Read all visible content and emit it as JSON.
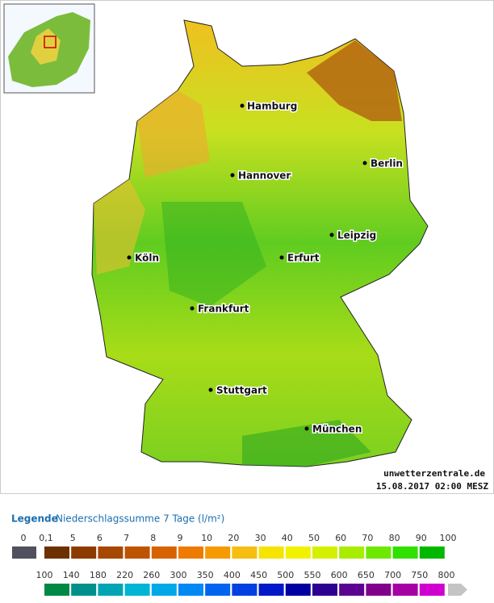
{
  "map": {
    "cities": [
      "Hamburg",
      "Hannover",
      "Berlin",
      "Leipzig",
      "Köln",
      "Erfurt",
      "Frankfurt",
      "Stuttgart",
      "München"
    ],
    "source": "unwetterzentrale.de",
    "timestamp": "15.08.2017 02:00 MESZ"
  },
  "legend": {
    "title": "Legende",
    "subtitle": "Niederschlagssumme 7 Tage  (l/m²)",
    "row1_labels": [
      "0",
      "0,1",
      "5",
      "6",
      "7",
      "8",
      "9",
      "10",
      "20",
      "30",
      "40",
      "50",
      "60",
      "70",
      "80",
      "90",
      "100"
    ],
    "row1_colors": [
      "#50505e",
      "#6e3000",
      "#8c3c00",
      "#a64800",
      "#bd5400",
      "#d86200",
      "#ef7a00",
      "#f59a00",
      "#f5be10",
      "#f5e400",
      "#f2f200",
      "#d4f000",
      "#a8ec00",
      "#6ee800",
      "#30e000",
      "#00b800",
      "#0c8c10"
    ],
    "row2_labels": [
      "100",
      "140",
      "180",
      "220",
      "260",
      "300",
      "350",
      "400",
      "450",
      "500",
      "550",
      "600",
      "650",
      "700",
      "750",
      "800"
    ],
    "row2_colors": [
      "#008844",
      "#00908c",
      "#00a4b4",
      "#00b4d4",
      "#00a8e8",
      "#0088f4",
      "#0064f0",
      "#0040e0",
      "#0018c8",
      "#0000a0",
      "#2c0090",
      "#5c0090",
      "#80008c",
      "#a400a4",
      "#d000d0",
      "#ff00ff"
    ],
    "overflow_color": "#c4c4c4"
  }
}
